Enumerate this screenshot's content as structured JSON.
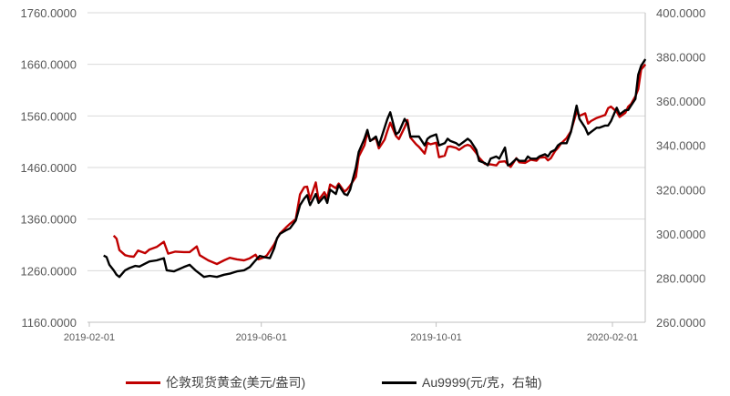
{
  "chart_data": {
    "type": "line",
    "left_axis": {
      "ylim": [
        1160,
        1760
      ],
      "ticks": [
        "1760.0000",
        "1660.0000",
        "1560.0000",
        "1460.0000",
        "1360.0000",
        "1260.0000",
        "1160.0000"
      ]
    },
    "right_axis": {
      "ylim": [
        260,
        400
      ],
      "ticks": [
        "400.0000",
        "380.0000",
        "360.0000",
        "340.0000",
        "320.0000",
        "300.0000",
        "280.0000",
        "260.0000"
      ]
    },
    "x_ticks": [
      "2019-02-01",
      "2019-06-01",
      "2019-10-01",
      "2020-02-01"
    ],
    "x_tick_dates": [
      "2019-02-01",
      "2019-06-01",
      "2019-10-01",
      "2020-02-01"
    ],
    "legend_position": "bottom",
    "grid": "horizontal",
    "series": [
      {
        "name": "伦敦现货黄金(美元/盎司)",
        "axis": "left",
        "color": "#c00000",
        "points": [
          [
            "2019-02-18",
            1328
          ],
          [
            "2019-02-20",
            1322
          ],
          [
            "2019-02-22",
            1300
          ],
          [
            "2019-02-26",
            1290
          ],
          [
            "2019-03-01",
            1288
          ],
          [
            "2019-03-04",
            1287
          ],
          [
            "2019-03-07",
            1299
          ],
          [
            "2019-03-12",
            1294
          ],
          [
            "2019-03-15",
            1301
          ],
          [
            "2019-03-20",
            1306
          ],
          [
            "2019-03-25",
            1316
          ],
          [
            "2019-03-28",
            1293
          ],
          [
            "2019-04-02",
            1297
          ],
          [
            "2019-04-08",
            1296
          ],
          [
            "2019-04-12",
            1296
          ],
          [
            "2019-04-17",
            1307
          ],
          [
            "2019-04-19",
            1290
          ],
          [
            "2019-04-25",
            1280
          ],
          [
            "2019-05-01",
            1273
          ],
          [
            "2019-05-06",
            1280
          ],
          [
            "2019-05-10",
            1285
          ],
          [
            "2019-05-15",
            1282
          ],
          [
            "2019-05-20",
            1280
          ],
          [
            "2019-05-24",
            1284
          ],
          [
            "2019-05-28",
            1291
          ],
          [
            "2019-05-30",
            1282
          ],
          [
            "2019-06-03",
            1286
          ],
          [
            "2019-06-05",
            1290
          ],
          [
            "2019-06-10",
            1311
          ],
          [
            "2019-06-12",
            1322
          ],
          [
            "2019-06-14",
            1332
          ],
          [
            "2019-06-18",
            1343
          ],
          [
            "2019-06-21",
            1351
          ],
          [
            "2019-06-25",
            1360
          ],
          [
            "2019-06-28",
            1408
          ],
          [
            "2019-07-01",
            1422
          ],
          [
            "2019-07-03",
            1423
          ],
          [
            "2019-07-05",
            1398
          ],
          [
            "2019-07-09",
            1431
          ],
          [
            "2019-07-11",
            1397
          ],
          [
            "2019-07-15",
            1412
          ],
          [
            "2019-07-17",
            1401
          ],
          [
            "2019-07-19",
            1427
          ],
          [
            "2019-07-23",
            1420
          ],
          [
            "2019-07-25",
            1429
          ],
          [
            "2019-07-29",
            1413
          ],
          [
            "2019-07-31",
            1418
          ],
          [
            "2019-08-02",
            1425
          ],
          [
            "2019-08-06",
            1442
          ],
          [
            "2019-08-08",
            1481
          ],
          [
            "2019-08-12",
            1503
          ],
          [
            "2019-08-14",
            1528
          ],
          [
            "2019-08-16",
            1512
          ],
          [
            "2019-08-20",
            1517
          ],
          [
            "2019-08-22",
            1497
          ],
          [
            "2019-08-26",
            1514
          ],
          [
            "2019-08-28",
            1531
          ],
          [
            "2019-08-30",
            1547
          ],
          [
            "2019-09-03",
            1521
          ],
          [
            "2019-09-05",
            1515
          ],
          [
            "2019-09-09",
            1538
          ],
          [
            "2019-09-11",
            1552
          ],
          [
            "2019-09-13",
            1518
          ],
          [
            "2019-09-17",
            1505
          ],
          [
            "2019-09-19",
            1500
          ],
          [
            "2019-09-23",
            1487
          ],
          [
            "2019-09-25",
            1508
          ],
          [
            "2019-09-27",
            1505
          ],
          [
            "2019-10-01",
            1508
          ],
          [
            "2019-10-03",
            1480
          ],
          [
            "2019-10-07",
            1483
          ],
          [
            "2019-10-09",
            1500
          ],
          [
            "2019-10-11",
            1501
          ],
          [
            "2019-10-15",
            1498
          ],
          [
            "2019-10-17",
            1494
          ],
          [
            "2019-10-21",
            1502
          ],
          [
            "2019-10-23",
            1504
          ],
          [
            "2019-10-25",
            1502
          ],
          [
            "2019-10-29",
            1488
          ],
          [
            "2019-10-31",
            1479
          ],
          [
            "2019-11-04",
            1467
          ],
          [
            "2019-11-06",
            1466
          ],
          [
            "2019-11-08",
            1466
          ],
          [
            "2019-11-12",
            1464
          ],
          [
            "2019-11-14",
            1471
          ],
          [
            "2019-11-18",
            1472
          ],
          [
            "2019-11-20",
            1466
          ],
          [
            "2019-11-22",
            1461
          ],
          [
            "2019-11-26",
            1478
          ],
          [
            "2019-11-28",
            1470
          ],
          [
            "2019-12-02",
            1469
          ],
          [
            "2019-12-04",
            1472
          ],
          [
            "2019-12-06",
            1475
          ],
          [
            "2019-12-10",
            1473
          ],
          [
            "2019-12-12",
            1479
          ],
          [
            "2019-12-16",
            1480
          ],
          [
            "2019-12-18",
            1474
          ],
          [
            "2019-12-20",
            1478
          ],
          [
            "2019-12-23",
            1492
          ],
          [
            "2019-12-25",
            1498
          ],
          [
            "2019-12-27",
            1506
          ],
          [
            "2019-12-31",
            1517
          ],
          [
            "2020-01-03",
            1530
          ],
          [
            "2020-01-07",
            1568
          ],
          [
            "2020-01-09",
            1560
          ],
          [
            "2020-01-13",
            1565
          ],
          [
            "2020-01-15",
            1545
          ],
          [
            "2020-01-17",
            1550
          ],
          [
            "2020-01-21",
            1556
          ],
          [
            "2020-01-23",
            1558
          ],
          [
            "2020-01-27",
            1562
          ],
          [
            "2020-01-29",
            1575
          ],
          [
            "2020-01-31",
            1578
          ],
          [
            "2020-02-04",
            1568
          ],
          [
            "2020-02-06",
            1558
          ],
          [
            "2020-02-10",
            1566
          ],
          [
            "2020-02-12",
            1578
          ],
          [
            "2020-02-14",
            1583
          ],
          [
            "2020-02-17",
            1598
          ],
          [
            "2020-02-19",
            1612
          ],
          [
            "2020-02-21",
            1650
          ],
          [
            "2020-02-24",
            1660
          ]
        ]
      },
      {
        "name": "Au9999(元/克，右轴)",
        "axis": "right",
        "color": "#000000",
        "points": [
          [
            "2019-02-11",
            290.2
          ],
          [
            "2019-02-13",
            289.5
          ],
          [
            "2019-02-15",
            286.0
          ],
          [
            "2019-02-18",
            283.5
          ],
          [
            "2019-02-20",
            281.5
          ],
          [
            "2019-02-22",
            280.5
          ],
          [
            "2019-02-26",
            283.5
          ],
          [
            "2019-03-01",
            284.5
          ],
          [
            "2019-03-05",
            285.5
          ],
          [
            "2019-03-08",
            285.2
          ],
          [
            "2019-03-12",
            286.5
          ],
          [
            "2019-03-15",
            287.5
          ],
          [
            "2019-03-20",
            288.0
          ],
          [
            "2019-03-25",
            289.0
          ],
          [
            "2019-03-27",
            283.5
          ],
          [
            "2019-04-01",
            283.0
          ],
          [
            "2019-04-08",
            285.0
          ],
          [
            "2019-04-12",
            286.0
          ],
          [
            "2019-04-16",
            283.5
          ],
          [
            "2019-04-19",
            282.0
          ],
          [
            "2019-04-22",
            280.5
          ],
          [
            "2019-04-26",
            281.0
          ],
          [
            "2019-05-01",
            280.5
          ],
          [
            "2019-05-06",
            281.5
          ],
          [
            "2019-05-10",
            282.0
          ],
          [
            "2019-05-15",
            283.0
          ],
          [
            "2019-05-20",
            283.5
          ],
          [
            "2019-05-24",
            285.0
          ],
          [
            "2019-05-28",
            288.0
          ],
          [
            "2019-05-31",
            290.0
          ],
          [
            "2019-06-03",
            289.5
          ],
          [
            "2019-06-07",
            289.0
          ],
          [
            "2019-06-10",
            293.5
          ],
          [
            "2019-06-12",
            298.0
          ],
          [
            "2019-06-14",
            300.0
          ],
          [
            "2019-06-18",
            301.5
          ],
          [
            "2019-06-21",
            302.5
          ],
          [
            "2019-06-25",
            306.0
          ],
          [
            "2019-06-28",
            313.0
          ],
          [
            "2019-07-01",
            316.0
          ],
          [
            "2019-07-03",
            317.5
          ],
          [
            "2019-07-05",
            313.0
          ],
          [
            "2019-07-09",
            318.0
          ],
          [
            "2019-07-11",
            314.0
          ],
          [
            "2019-07-15",
            317.0
          ],
          [
            "2019-07-17",
            314.0
          ],
          [
            "2019-07-19",
            320.0
          ],
          [
            "2019-07-23",
            318.0
          ],
          [
            "2019-07-25",
            322.0
          ],
          [
            "2019-07-29",
            318.0
          ],
          [
            "2019-07-31",
            317.5
          ],
          [
            "2019-08-02",
            320.0
          ],
          [
            "2019-08-06",
            330.0
          ],
          [
            "2019-08-08",
            337.0
          ],
          [
            "2019-08-12",
            343.0
          ],
          [
            "2019-08-14",
            347.0
          ],
          [
            "2019-08-16",
            342.0
          ],
          [
            "2019-08-20",
            344.0
          ],
          [
            "2019-08-22",
            340.0
          ],
          [
            "2019-08-26",
            348.0
          ],
          [
            "2019-08-28",
            352.0
          ],
          [
            "2019-08-30",
            355.0
          ],
          [
            "2019-09-03",
            345.0
          ],
          [
            "2019-09-05",
            346.0
          ],
          [
            "2019-09-09",
            352.0
          ],
          [
            "2019-09-11",
            350.0
          ],
          [
            "2019-09-13",
            344.0
          ],
          [
            "2019-09-17",
            344.0
          ],
          [
            "2019-09-19",
            344.0
          ],
          [
            "2019-09-23",
            340.0
          ],
          [
            "2019-09-25",
            343.0
          ],
          [
            "2019-09-27",
            344.0
          ],
          [
            "2019-10-01",
            345.0
          ],
          [
            "2019-10-03",
            340.0
          ],
          [
            "2019-10-07",
            341.0
          ],
          [
            "2019-10-09",
            343.0
          ],
          [
            "2019-10-11",
            342.0
          ],
          [
            "2019-10-15",
            341.0
          ],
          [
            "2019-10-17",
            340.0
          ],
          [
            "2019-10-21",
            342.0
          ],
          [
            "2019-10-23",
            343.0
          ],
          [
            "2019-10-25",
            342.0
          ],
          [
            "2019-10-29",
            338.0
          ],
          [
            "2019-10-31",
            333.0
          ],
          [
            "2019-11-04",
            332.0
          ],
          [
            "2019-11-06",
            331.0
          ],
          [
            "2019-11-08",
            334.0
          ],
          [
            "2019-11-12",
            335.0
          ],
          [
            "2019-11-14",
            334.0
          ],
          [
            "2019-11-18",
            339.0
          ],
          [
            "2019-11-20",
            331.0
          ],
          [
            "2019-11-22",
            331.5
          ],
          [
            "2019-11-26",
            334.0
          ],
          [
            "2019-11-28",
            333.0
          ],
          [
            "2019-12-02",
            333.0
          ],
          [
            "2019-12-04",
            335.0
          ],
          [
            "2019-12-06",
            334.0
          ],
          [
            "2019-12-10",
            334.0
          ],
          [
            "2019-12-12",
            335.0
          ],
          [
            "2019-12-16",
            336.0
          ],
          [
            "2019-12-18",
            335.0
          ],
          [
            "2019-12-20",
            337.0
          ],
          [
            "2019-12-23",
            338.0
          ],
          [
            "2019-12-25",
            340.0
          ],
          [
            "2019-12-27",
            341.0
          ],
          [
            "2019-12-31",
            341.0
          ],
          [
            "2020-01-03",
            346.0
          ],
          [
            "2020-01-07",
            358.0
          ],
          [
            "2020-01-09",
            352.0
          ],
          [
            "2020-01-13",
            348.0
          ],
          [
            "2020-01-15",
            345.0
          ],
          [
            "2020-01-17",
            346.0
          ],
          [
            "2020-01-21",
            348.0
          ],
          [
            "2020-01-23",
            348.0
          ],
          [
            "2020-01-27",
            349.0
          ],
          [
            "2020-01-29",
            349.0
          ],
          [
            "2020-01-31",
            351.0
          ],
          [
            "2020-02-04",
            357.0
          ],
          [
            "2020-02-06",
            354.0
          ],
          [
            "2020-02-10",
            356.0
          ],
          [
            "2020-02-12",
            356.0
          ],
          [
            "2020-02-14",
            358.0
          ],
          [
            "2020-02-17",
            361.0
          ],
          [
            "2020-02-19",
            372.0
          ],
          [
            "2020-02-21",
            376.0
          ],
          [
            "2020-02-24",
            379.0
          ]
        ]
      }
    ]
  }
}
